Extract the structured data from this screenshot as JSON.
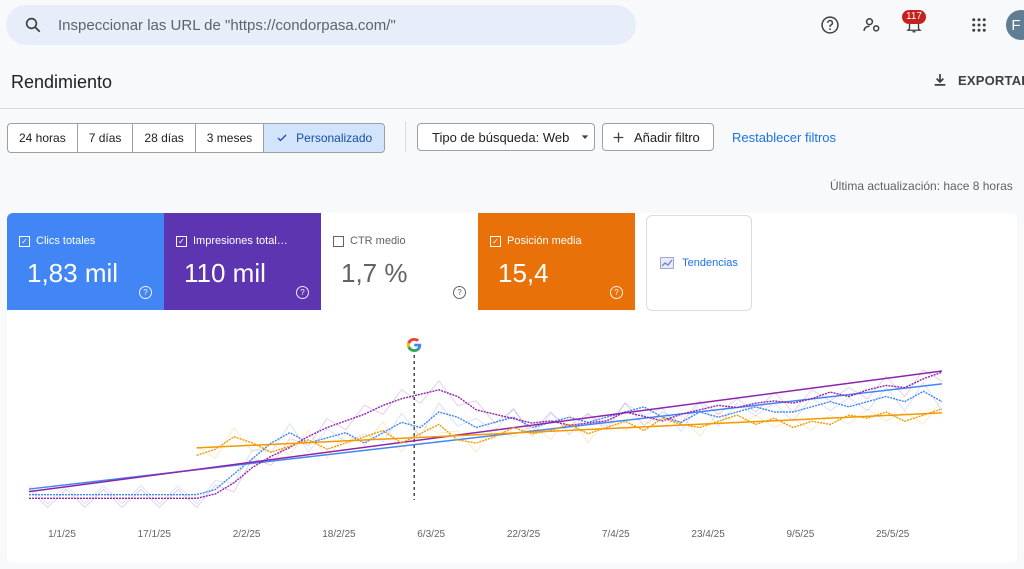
{
  "search": {
    "placeholder": "Inspeccionar las URL de \"https://condorpasa.com/\""
  },
  "topbar": {
    "help_icon": "help-circle-icon",
    "account_icon": "manage-accounts-icon",
    "notif_icon": "bell-icon",
    "notif_count": "117",
    "apps_icon": "apps-grid-icon",
    "avatar_initial": "F"
  },
  "page": {
    "title": "Rendimiento",
    "export_label": "EXPORTAR"
  },
  "date_ranges": [
    {
      "label": "24 horas",
      "selected": false
    },
    {
      "label": "7 días",
      "selected": false
    },
    {
      "label": "28 días",
      "selected": false
    },
    {
      "label": "3 meses",
      "selected": false
    },
    {
      "label": "Personalizado",
      "selected": true
    }
  ],
  "filters": {
    "search_type": "Tipo de búsqueda: Web",
    "add_filter": "Añadir filtro",
    "reset": "Restablecer filtros"
  },
  "last_update": "Última actualización: hace 8 horas",
  "metrics": [
    {
      "label": "Clics totales",
      "value": "1,83 mil",
      "checked": true,
      "color": "#4285f4"
    },
    {
      "label": "Impresiones total…",
      "value": "110 mil",
      "checked": true,
      "color": "#5e35b1"
    },
    {
      "label": "CTR medio",
      "value": "1,7 %",
      "checked": false,
      "color": "#ffffff"
    },
    {
      "label": "Posición media",
      "value": "15,4",
      "checked": true,
      "color": "#e8710a"
    }
  ],
  "trends": {
    "label": "Tendencias",
    "icon": "trend-chart-icon"
  },
  "chart_data": {
    "type": "line",
    "x_ticks": [
      "1/1/25",
      "17/1/25",
      "2/2/25",
      "18/2/25",
      "6/3/25",
      "22/3/25",
      "7/4/25",
      "23/4/25",
      "9/5/25",
      "25/5/25"
    ],
    "annotation": {
      "date": "6/3/25",
      "icon": "google-update-icon"
    },
    "series": [
      {
        "color": "#4285f4",
        "trend": true,
        "values": [
          2,
          2,
          2,
          2,
          2,
          2,
          2,
          2,
          2,
          2,
          3,
          6,
          9,
          12,
          14,
          12,
          13,
          14,
          12,
          14,
          16,
          15,
          18,
          17,
          15,
          16,
          17,
          15,
          16,
          17,
          16,
          17,
          18,
          19,
          17,
          16,
          18,
          17,
          18,
          19,
          18,
          18,
          19,
          20,
          19,
          20,
          21,
          20,
          22,
          20
        ]
      },
      {
        "color": "#8e24aa",
        "trend": true,
        "values": [
          3,
          3,
          3,
          3,
          3,
          3,
          3,
          3,
          3,
          3,
          5,
          10,
          17,
          22,
          26,
          31,
          35,
          38,
          41,
          45,
          48,
          50,
          52,
          49,
          43,
          41,
          39,
          37,
          38,
          36,
          37,
          38,
          42,
          40,
          38,
          41,
          43,
          45,
          44,
          46,
          47,
          46,
          48,
          51,
          49,
          52,
          54,
          53,
          57,
          60
        ]
      },
      {
        "color": "#f29900",
        "trend": true,
        "values": [
          null,
          null,
          null,
          null,
          null,
          null,
          null,
          null,
          null,
          14.6,
          14.8,
          15.2,
          15.0,
          14.7,
          14.9,
          15.1,
          14.8,
          15.0,
          15.2,
          15.4,
          15.0,
          15.3,
          15.6,
          15.1,
          15.0,
          15.2,
          15.5,
          15.3,
          15.4,
          15.6,
          15.3,
          15.5,
          15.7,
          15.4,
          15.8,
          15.6,
          15.5,
          15.7,
          15.9,
          15.6,
          15.8,
          15.5,
          15.7,
          15.6,
          15.9,
          15.8,
          16.0,
          15.7,
          15.9,
          16.1
        ]
      }
    ]
  }
}
